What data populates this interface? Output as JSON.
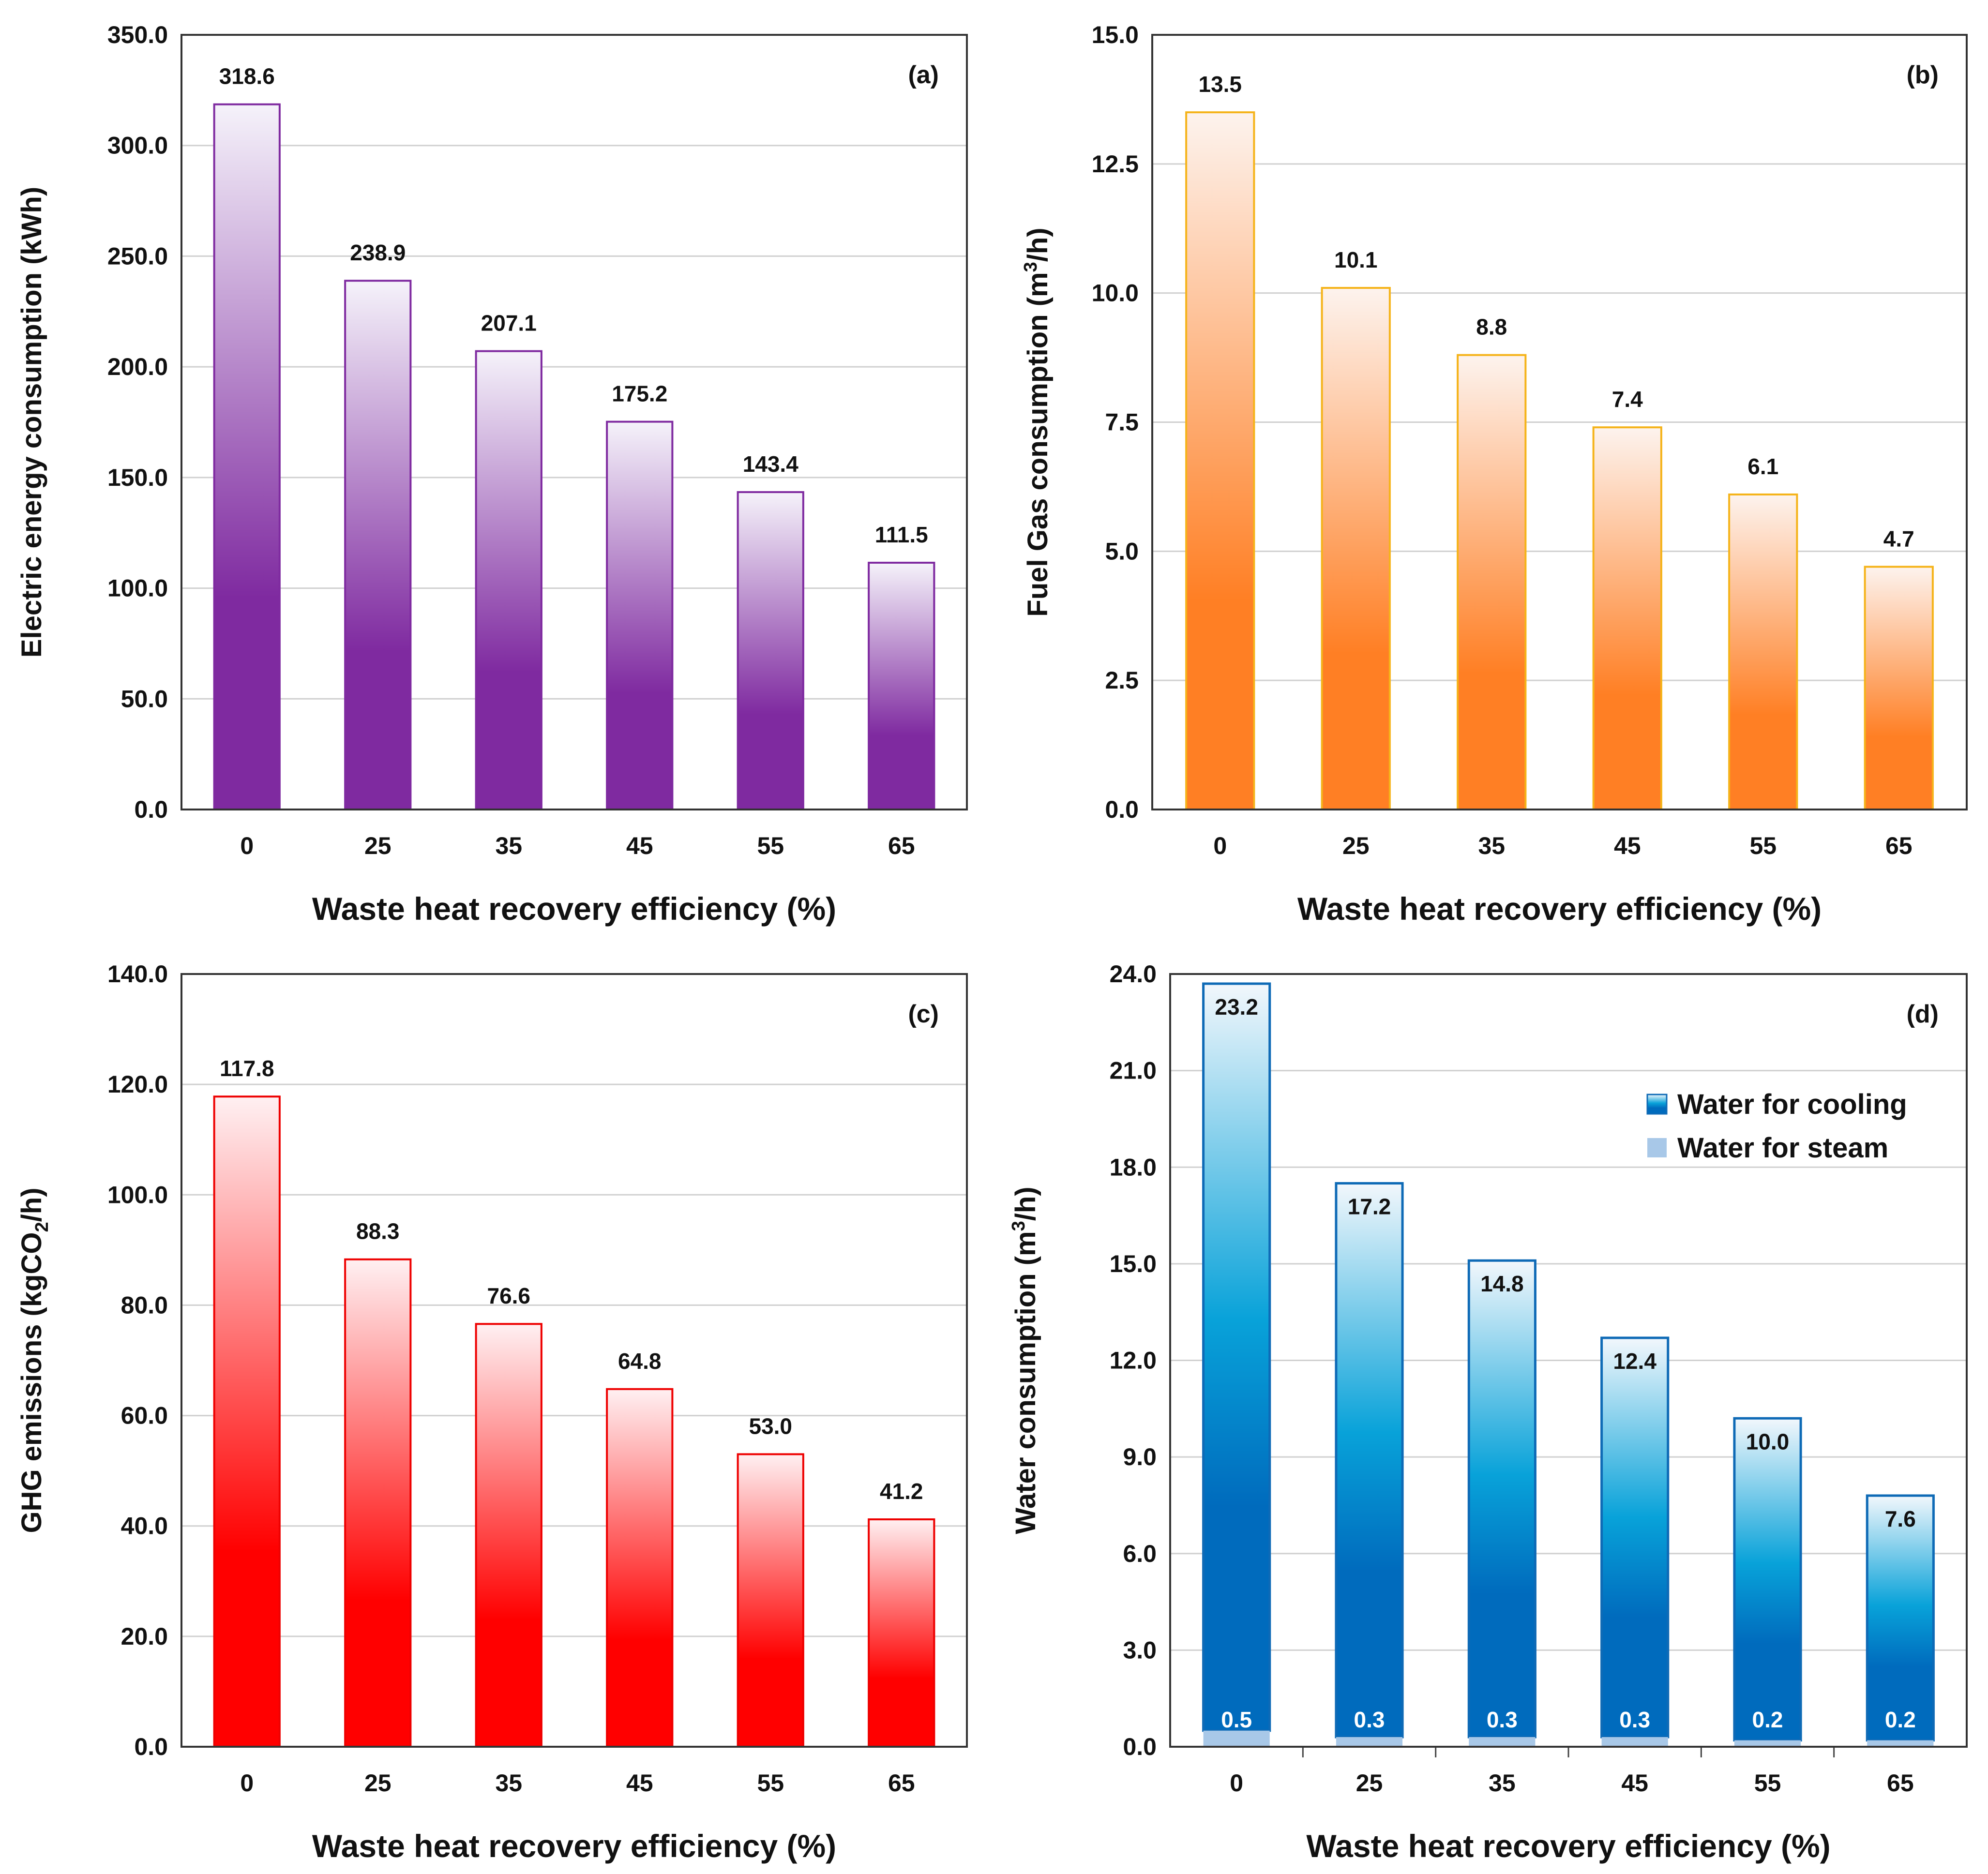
{
  "chart_data": [
    {
      "id": "a",
      "type": "bar",
      "panel_label": "(a)",
      "xlabel": "Waste heat recovery efficiency (%)",
      "ylabel": "Electric energy consumption (kWh)",
      "ylim": [
        0,
        350
      ],
      "yticks": [
        "0.0",
        "50.0",
        "100.0",
        "150.0",
        "200.0",
        "250.0",
        "300.0",
        "350.0"
      ],
      "categories": [
        "0",
        "25",
        "35",
        "45",
        "55",
        "65"
      ],
      "values": [
        318.6,
        238.9,
        207.1,
        175.2,
        143.4,
        111.5
      ],
      "labels": [
        "318.6",
        "238.9",
        "207.1",
        "175.2",
        "143.4",
        "111.5"
      ],
      "colors": {
        "bar_bottom": "#7f2aa0",
        "bar_top": "#f5f2fa",
        "border": "#7f2aa0"
      }
    },
    {
      "id": "b",
      "type": "bar",
      "panel_label": "(b)",
      "xlabel": "Waste heat recovery efficiency (%)",
      "ylabel": "Fuel Gas consumption (m³/h)",
      "ylim": [
        0,
        15
      ],
      "yticks": [
        "0.0",
        "2.5",
        "5.0",
        "7.5",
        "10.0",
        "12.5",
        "15.0"
      ],
      "categories": [
        "0",
        "25",
        "35",
        "45",
        "55",
        "65"
      ],
      "values": [
        13.5,
        10.1,
        8.8,
        7.4,
        6.1,
        4.7
      ],
      "labels": [
        "13.5",
        "10.1",
        "8.8",
        "7.4",
        "6.1",
        "4.7"
      ],
      "colors": {
        "bar_bottom": "#ff7f24",
        "bar_top": "#fdf3ee",
        "border": "#f5b319"
      }
    },
    {
      "id": "c",
      "type": "bar",
      "panel_label": "(c)",
      "xlabel": "Waste heat recovery efficiency (%)",
      "ylabel": "GHG emissions (kgCO₂/h)",
      "ylim": [
        0,
        140
      ],
      "yticks": [
        "0.0",
        "20.0",
        "40.0",
        "60.0",
        "80.0",
        "100.0",
        "120.0",
        "140.0"
      ],
      "categories": [
        "0",
        "25",
        "35",
        "45",
        "55",
        "65"
      ],
      "values": [
        117.8,
        88.3,
        76.6,
        64.8,
        53.0,
        41.2
      ],
      "labels": [
        "117.8",
        "88.3",
        "76.6",
        "64.8",
        "53.0",
        "41.2"
      ],
      "colors": {
        "bar_bottom": "#ff0000",
        "bar_top": "#fff0f2",
        "border": "#ee0000"
      }
    },
    {
      "id": "d",
      "type": "bar",
      "stacked": true,
      "panel_label": "(d)",
      "xlabel": "Waste heat recovery efficiency (%)",
      "ylabel": "Water consumption (m³/h)",
      "ylim": [
        0,
        24
      ],
      "yticks": [
        "0.0",
        "3.0",
        "6.0",
        "9.0",
        "12.0",
        "15.0",
        "18.0",
        "21.0",
        "24.0"
      ],
      "categories": [
        "0",
        "25",
        "35",
        "45",
        "55",
        "65"
      ],
      "series": [
        {
          "name": "Water for steam",
          "values": [
            0.5,
            0.3,
            0.3,
            0.3,
            0.2,
            0.2
          ],
          "labels": [
            "0.5",
            "0.3",
            "0.3",
            "0.3",
            "0.2",
            "0.2"
          ]
        },
        {
          "name": "Water for cooling",
          "values": [
            23.2,
            17.2,
            14.8,
            12.4,
            10.0,
            7.6
          ],
          "labels": [
            "23.2",
            "17.2",
            "14.8",
            "12.4",
            "10.0",
            "7.6"
          ]
        }
      ],
      "legend": [
        "Water for cooling",
        "Water for steam"
      ],
      "legend_position": "top-right",
      "colors": {
        "cool_bottom": "#006bbd",
        "cool_mid": "#08a2d9",
        "cool_top": "#f2f7fc",
        "steam": "#a8c8e8",
        "border": "#0e6ab6"
      }
    }
  ]
}
